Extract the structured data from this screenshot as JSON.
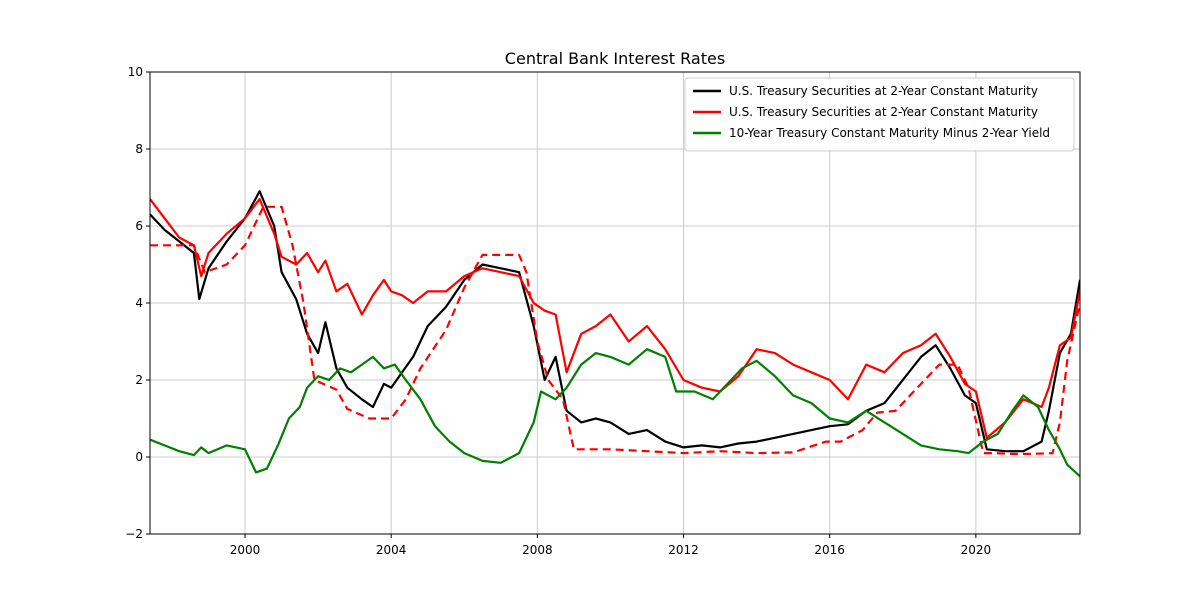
{
  "chart_data": {
    "type": "line",
    "title": "Central Bank Interest Rates",
    "xlabel": "",
    "ylabel": "",
    "xlim": [
      1997.4,
      2022.85
    ],
    "ylim": [
      -2,
      10
    ],
    "xticks": [
      2000,
      2004,
      2008,
      2012,
      2016,
      2020
    ],
    "xtick_labels": [
      "2000",
      "2004",
      "2008",
      "2012",
      "2016",
      "2020"
    ],
    "yticks": [
      -2,
      0,
      2,
      4,
      6,
      8,
      10
    ],
    "ytick_labels": [
      "−2",
      "0",
      "2",
      "4",
      "6",
      "8",
      "10"
    ],
    "grid": true,
    "legend_position": "top-right",
    "series": [
      {
        "name": "U.S. Treasury Securities at 2-Year Constant Maturity",
        "color": "#000000",
        "style": "solid",
        "x": [
          1997.4,
          1997.8,
          1998.2,
          1998.6,
          1998.75,
          1999.0,
          1999.5,
          2000.0,
          2000.4,
          2000.8,
          2001.0,
          2001.4,
          2001.7,
          2002.0,
          2002.2,
          2002.5,
          2002.8,
          2003.2,
          2003.5,
          2003.8,
          2004.0,
          2004.3,
          2004.6,
          2005.0,
          2005.5,
          2006.0,
          2006.5,
          2007.0,
          2007.5,
          2007.9,
          2008.2,
          2008.5,
          2008.8,
          2009.2,
          2009.6,
          2010.0,
          2010.5,
          2011.0,
          2011.5,
          2012.0,
          2012.5,
          2013.0,
          2013.5,
          2014.0,
          2014.5,
          2015.0,
          2015.5,
          2016.0,
          2016.5,
          2017.0,
          2017.5,
          2018.0,
          2018.5,
          2018.9,
          2019.3,
          2019.7,
          2020.0,
          2020.3,
          2020.8,
          2021.3,
          2021.8,
          2022.0,
          2022.3,
          2022.6,
          2022.85
        ],
        "y": [
          6.3,
          5.9,
          5.6,
          5.3,
          4.1,
          4.9,
          5.6,
          6.2,
          6.9,
          6.0,
          4.8,
          4.1,
          3.2,
          2.7,
          3.5,
          2.3,
          1.8,
          1.5,
          1.3,
          1.9,
          1.8,
          2.2,
          2.6,
          3.4,
          3.9,
          4.6,
          5.0,
          4.9,
          4.8,
          3.4,
          2.0,
          2.6,
          1.2,
          0.9,
          1.0,
          0.9,
          0.6,
          0.7,
          0.4,
          0.25,
          0.3,
          0.25,
          0.35,
          0.4,
          0.5,
          0.6,
          0.7,
          0.8,
          0.85,
          1.2,
          1.4,
          2.0,
          2.6,
          2.9,
          2.3,
          1.6,
          1.4,
          0.2,
          0.15,
          0.15,
          0.4,
          1.2,
          2.7,
          3.2,
          4.6
        ]
      },
      {
        "name": "U.S. Treasury Securities at 2-Year Constant Maturity",
        "color": "#ff0000",
        "style": "solid",
        "x": [
          1997.4,
          1997.8,
          1998.2,
          1998.6,
          1998.8,
          1999.0,
          1999.5,
          2000.0,
          2000.4,
          2000.8,
          2001.0,
          2001.4,
          2001.7,
          2002.0,
          2002.2,
          2002.5,
          2002.8,
          2003.2,
          2003.5,
          2003.8,
          2004.0,
          2004.3,
          2004.6,
          2005.0,
          2005.5,
          2006.0,
          2006.5,
          2007.0,
          2007.5,
          2007.9,
          2008.2,
          2008.5,
          2008.8,
          2009.2,
          2009.6,
          2010.0,
          2010.5,
          2011.0,
          2011.5,
          2012.0,
          2012.5,
          2013.0,
          2013.5,
          2014.0,
          2014.5,
          2015.0,
          2015.5,
          2016.0,
          2016.5,
          2017.0,
          2017.5,
          2018.0,
          2018.5,
          2018.9,
          2019.3,
          2019.7,
          2020.0,
          2020.3,
          2020.8,
          2021.3,
          2021.8,
          2022.0,
          2022.3,
          2022.6,
          2022.85
        ],
        "y": [
          6.7,
          6.2,
          5.7,
          5.5,
          4.7,
          5.3,
          5.8,
          6.2,
          6.7,
          5.8,
          5.2,
          5.0,
          5.3,
          4.8,
          5.1,
          4.3,
          4.5,
          3.7,
          4.2,
          4.6,
          4.3,
          4.2,
          4.0,
          4.3,
          4.3,
          4.7,
          4.9,
          4.8,
          4.7,
          4.0,
          3.8,
          3.7,
          2.2,
          3.2,
          3.4,
          3.7,
          3.0,
          3.4,
          2.8,
          2.0,
          1.8,
          1.7,
          2.1,
          2.8,
          2.7,
          2.4,
          2.2,
          2.0,
          1.5,
          2.4,
          2.2,
          2.7,
          2.9,
          3.2,
          2.6,
          1.9,
          1.7,
          0.5,
          0.9,
          1.5,
          1.3,
          1.8,
          2.9,
          3.1,
          4.3
        ]
      },
      {
        "name": "",
        "color": "#ff0000",
        "style": "dashed",
        "x": [
          1997.4,
          1998.6,
          1998.9,
          1999.5,
          2000.0,
          2000.5,
          2001.0,
          2001.3,
          2001.6,
          2001.9,
          2002.5,
          2002.8,
          2003.4,
          2004.0,
          2004.4,
          2004.8,
          2005.5,
          2006.0,
          2006.5,
          2007.5,
          2007.7,
          2008.0,
          2008.3,
          2008.7,
          2009.0,
          2010.0,
          2011.0,
          2012.0,
          2013.0,
          2014.0,
          2015.0,
          2015.9,
          2016.3,
          2016.9,
          2017.3,
          2017.8,
          2018.2,
          2018.6,
          2019.0,
          2019.5,
          2019.8,
          2020.2,
          2020.5,
          2021.0,
          2021.5,
          2022.1,
          2022.3,
          2022.5,
          2022.85
        ],
        "y": [
          5.5,
          5.5,
          4.8,
          5.0,
          5.5,
          6.5,
          6.5,
          5.5,
          4.0,
          2.0,
          1.75,
          1.25,
          1.0,
          1.0,
          1.5,
          2.3,
          3.3,
          4.4,
          5.25,
          5.25,
          4.8,
          3.0,
          2.0,
          1.5,
          0.2,
          0.2,
          0.15,
          0.1,
          0.15,
          0.1,
          0.12,
          0.4,
          0.4,
          0.7,
          1.15,
          1.2,
          1.6,
          2.0,
          2.4,
          2.4,
          1.8,
          0.1,
          0.1,
          0.08,
          0.08,
          0.1,
          0.9,
          2.5,
          4.0
        ]
      },
      {
        "name": "10-Year Treasury Constant Maturity Minus 2-Year Yield",
        "color": "#008000",
        "style": "solid",
        "x": [
          1997.4,
          1997.8,
          1998.2,
          1998.6,
          1998.8,
          1999.0,
          1999.5,
          2000.0,
          2000.3,
          2000.6,
          2000.9,
          2001.2,
          2001.5,
          2001.7,
          2002.0,
          2002.3,
          2002.6,
          2002.9,
          2003.2,
          2003.5,
          2003.8,
          2004.1,
          2004.4,
          2004.8,
          2005.2,
          2005.6,
          2006.0,
          2006.5,
          2007.0,
          2007.5,
          2007.9,
          2008.1,
          2008.5,
          2008.8,
          2009.2,
          2009.6,
          2010.0,
          2010.5,
          2011.0,
          2011.5,
          2011.8,
          2012.3,
          2012.8,
          2013.2,
          2013.6,
          2014.0,
          2014.5,
          2015.0,
          2015.5,
          2016.0,
          2016.5,
          2017.0,
          2017.5,
          2018.0,
          2018.5,
          2019.0,
          2019.5,
          2019.8,
          2020.2,
          2020.6,
          2021.0,
          2021.3,
          2021.7,
          2022.0,
          2022.3,
          2022.5,
          2022.85
        ],
        "y": [
          0.45,
          0.3,
          0.15,
          0.05,
          0.25,
          0.1,
          0.3,
          0.2,
          -0.4,
          -0.3,
          0.3,
          1.0,
          1.3,
          1.8,
          2.1,
          2.0,
          2.3,
          2.2,
          2.4,
          2.6,
          2.3,
          2.4,
          2.0,
          1.5,
          0.8,
          0.4,
          0.1,
          -0.1,
          -0.15,
          0.1,
          0.9,
          1.7,
          1.5,
          1.8,
          2.4,
          2.7,
          2.6,
          2.4,
          2.8,
          2.6,
          1.7,
          1.7,
          1.5,
          1.9,
          2.3,
          2.5,
          2.1,
          1.6,
          1.4,
          1.0,
          0.9,
          1.2,
          0.9,
          0.6,
          0.3,
          0.2,
          0.15,
          0.1,
          0.4,
          0.6,
          1.2,
          1.6,
          1.3,
          0.7,
          0.2,
          -0.2,
          -0.5
        ]
      }
    ]
  }
}
